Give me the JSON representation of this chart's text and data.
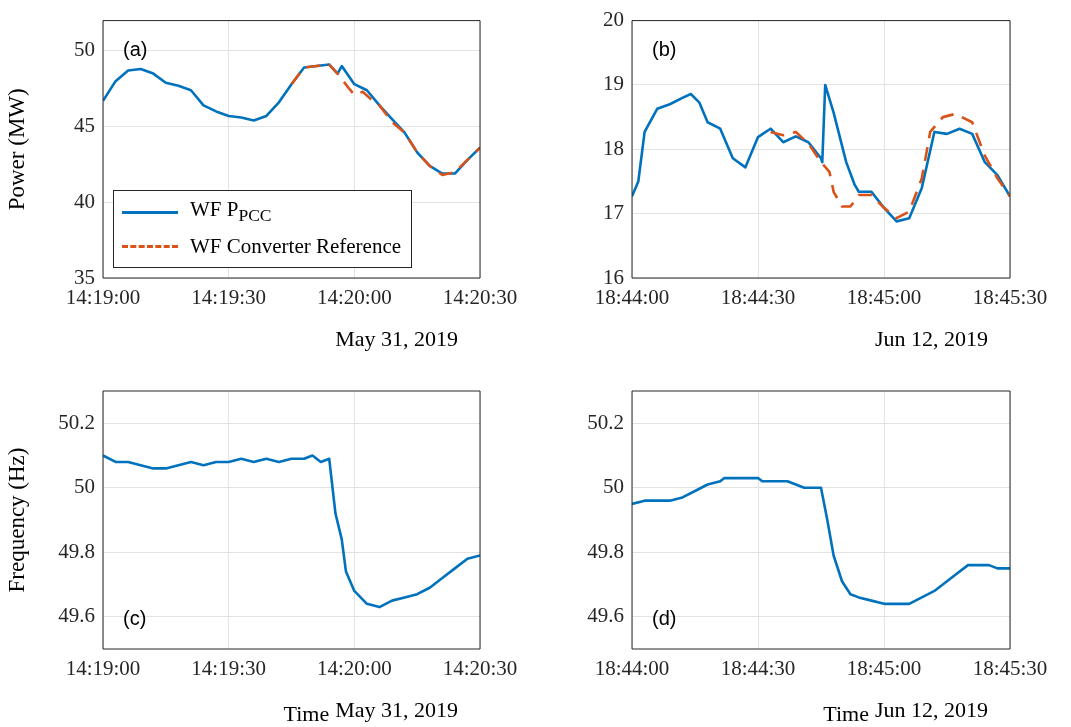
{
  "chart_data": [
    {
      "type": "line",
      "ylabel": "Power (MW)",
      "annotations": [
        "(a)",
        "May 31, 2019"
      ],
      "xlim": [
        14.316667,
        14.341667
      ],
      "xticks": [
        {
          "value": 14.316667,
          "label": "14:19:00"
        },
        {
          "value": 14.325,
          "label": "14:19:30"
        },
        {
          "value": 14.333333,
          "label": "14:20:00"
        },
        {
          "value": 14.341667,
          "label": "14:20:30"
        }
      ],
      "ylim": [
        35,
        52
      ],
      "yticks": [
        35,
        40,
        45,
        50
      ],
      "grid": true,
      "legend": "bottom left",
      "series": [
        {
          "name": "WF P$_{PCC}$",
          "color": "#0072bd",
          "line_style": "solid",
          "x": [
            14.316667,
            14.3175,
            14.318333,
            14.319167,
            14.32,
            14.320833,
            14.321667,
            14.3225,
            14.323333,
            14.324167,
            14.325,
            14.325833,
            14.326667,
            14.3275,
            14.328333,
            14.329167,
            14.33,
            14.330833,
            14.331667,
            14.332222,
            14.3325,
            14.333333,
            14.334167,
            14.335,
            14.335833,
            14.336667,
            14.3375,
            14.338333,
            14.339167,
            14.34,
            14.340833,
            14.341667
          ],
          "values": [
            46.7,
            48.0,
            48.7,
            48.8,
            48.5,
            47.9,
            47.7,
            47.4,
            46.4,
            46.0,
            45.7,
            45.6,
            45.4,
            45.7,
            46.6,
            47.8,
            48.9,
            49.0,
            49.1,
            48.5,
            49.0,
            47.8,
            47.4,
            46.4,
            45.5,
            44.6,
            43.3,
            42.4,
            41.9,
            41.9,
            42.8,
            43.6
          ]
        },
        {
          "name": "WF Converter Reference",
          "color": "#d95319",
          "line_style": "dashed",
          "x": [
            14.329167,
            14.33,
            14.330833,
            14.331667,
            14.332222,
            14.332917,
            14.333333,
            14.333889,
            14.334444,
            14.335,
            14.335833,
            14.336667,
            14.3375,
            14.338333,
            14.339167,
            14.34,
            14.340833,
            14.341667
          ],
          "values": [
            47.8,
            48.9,
            49.0,
            49.1,
            48.5,
            47.6,
            47.1,
            47.3,
            46.8,
            46.4,
            45.3,
            44.6,
            43.3,
            42.4,
            41.8,
            42.0,
            42.8,
            43.6
          ]
        }
      ]
    },
    {
      "type": "line",
      "annotations": [
        "(b)",
        "Jun 12, 2019"
      ],
      "xlim": [
        18.733333,
        18.758333
      ],
      "xticks": [
        {
          "value": 18.733333,
          "label": "18:44:00"
        },
        {
          "value": 18.741667,
          "label": "18:44:30"
        },
        {
          "value": 18.75,
          "label": "18:45:00"
        },
        {
          "value": 18.758333,
          "label": "18:45:30"
        }
      ],
      "ylim": [
        16,
        20
      ],
      "yticks": [
        16,
        17,
        18,
        19,
        20
      ],
      "grid": true,
      "series": [
        {
          "color": "#0072bd",
          "line_style": "solid",
          "x": [
            18.733333,
            18.73375,
            18.734167,
            18.735,
            18.735833,
            18.736667,
            18.737222,
            18.737778,
            18.738333,
            18.739167,
            18.74,
            18.740833,
            18.741667,
            18.7425,
            18.743333,
            18.744167,
            18.745,
            18.745833,
            18.745917,
            18.746111,
            18.746667,
            18.7475,
            18.748056,
            18.748333,
            18.749167,
            18.75,
            18.750833,
            18.751667,
            18.7525,
            18.753333,
            18.754167,
            18.755,
            18.755833,
            18.756667,
            18.7575,
            18.758333
          ],
          "values": [
            17.27,
            17.5,
            18.27,
            18.63,
            18.7,
            18.8,
            18.86,
            18.73,
            18.42,
            18.32,
            17.86,
            17.72,
            18.19,
            18.32,
            18.11,
            18.2,
            18.11,
            17.86,
            17.8,
            19.0,
            18.57,
            17.8,
            17.45,
            17.34,
            17.34,
            17.09,
            16.88,
            16.93,
            17.4,
            18.27,
            18.24,
            18.32,
            18.24,
            17.8,
            17.6,
            17.27
          ]
        },
        {
          "color": "#d95319",
          "line_style": "dashed",
          "x": [
            18.7425,
            18.743333,
            18.744167,
            18.745,
            18.745833,
            18.746389,
            18.746667,
            18.747222,
            18.747778,
            18.748333,
            18.749167,
            18.75,
            18.750833,
            18.751667,
            18.7525,
            18.753056,
            18.753889,
            18.754722,
            18.755833,
            18.756667,
            18.7575,
            18.758333
          ],
          "values": [
            18.27,
            18.22,
            18.27,
            18.09,
            17.8,
            17.65,
            17.34,
            17.11,
            17.11,
            17.29,
            17.29,
            17.09,
            16.93,
            17.03,
            17.55,
            18.27,
            18.5,
            18.55,
            18.42,
            17.9,
            17.55,
            17.27
          ]
        }
      ]
    },
    {
      "type": "line",
      "xlabel": "Time",
      "ylabel": "Frequency (Hz)",
      "annotations": [
        "(c)",
        "May 31, 2019"
      ],
      "xlim": [
        14.316667,
        14.341667
      ],
      "xticks": [
        {
          "value": 14.316667,
          "label": "14:19:00"
        },
        {
          "value": 14.325,
          "label": "14:19:30"
        },
        {
          "value": 14.333333,
          "label": "14:20:00"
        },
        {
          "value": 14.341667,
          "label": "14:20:30"
        }
      ],
      "ylim": [
        49.5,
        50.3
      ],
      "yticks": [
        49.6,
        49.8,
        {
          "value": 50,
          "label": "50"
        },
        50.2
      ],
      "grid": true,
      "series": [
        {
          "color": "#0072bd",
          "line_style": "solid",
          "x": [
            14.316667,
            14.3175,
            14.318333,
            14.319167,
            14.32,
            14.320833,
            14.321667,
            14.3225,
            14.323333,
            14.324167,
            14.325,
            14.325833,
            14.326667,
            14.3275,
            14.328333,
            14.329167,
            14.33,
            14.330556,
            14.331111,
            14.331667,
            14.332083,
            14.3325,
            14.332778,
            14.333333,
            14.334167,
            14.335,
            14.335833,
            14.336667,
            14.3375,
            14.338333,
            14.339167,
            14.34,
            14.340833,
            14.341667
          ],
          "values": [
            50.1,
            50.08,
            50.08,
            50.07,
            50.06,
            50.06,
            50.07,
            50.08,
            50.07,
            50.08,
            50.08,
            50.09,
            50.08,
            50.09,
            50.08,
            50.09,
            50.09,
            50.1,
            50.08,
            50.09,
            49.92,
            49.84,
            49.74,
            49.68,
            49.64,
            49.63,
            49.65,
            49.66,
            49.67,
            49.69,
            49.72,
            49.75,
            49.78,
            49.79
          ]
        }
      ]
    },
    {
      "type": "line",
      "xlabel": "Time",
      "annotations": [
        "(d)",
        "Jun 12, 2019"
      ],
      "xlim": [
        18.733333,
        18.758333
      ],
      "xticks": [
        {
          "value": 18.733333,
          "label": "18:44:00"
        },
        {
          "value": 18.741667,
          "label": "18:44:30"
        },
        {
          "value": 18.75,
          "label": "18:45:00"
        },
        {
          "value": 18.758333,
          "label": "18:45:30"
        }
      ],
      "ylim": [
        49.5,
        50.3
      ],
      "yticks": [
        49.6,
        49.8,
        {
          "value": 50,
          "label": "50"
        },
        50.2
      ],
      "grid": true,
      "series": [
        {
          "color": "#0072bd",
          "line_style": "solid",
          "x": [
            18.733333,
            18.734167,
            18.735833,
            18.736667,
            18.7375,
            18.738333,
            18.739167,
            18.739444,
            18.741667,
            18.741944,
            18.743611,
            18.744167,
            18.744722,
            18.745833,
            18.74625,
            18.746667,
            18.747222,
            18.747778,
            18.748333,
            18.749167,
            18.75,
            18.751667,
            18.7525,
            18.753333,
            18.754167,
            18.754722,
            18.755556,
            18.756944,
            18.7575,
            18.758333
          ],
          "values": [
            49.95,
            49.96,
            49.96,
            49.97,
            49.99,
            50.01,
            50.02,
            50.03,
            50.03,
            50.02,
            50.02,
            50.01,
            50.0,
            50.0,
            49.9,
            49.79,
            49.71,
            49.67,
            49.66,
            49.65,
            49.64,
            49.64,
            49.66,
            49.68,
            49.71,
            49.73,
            49.76,
            49.76,
            49.75,
            49.75
          ]
        }
      ]
    }
  ]
}
